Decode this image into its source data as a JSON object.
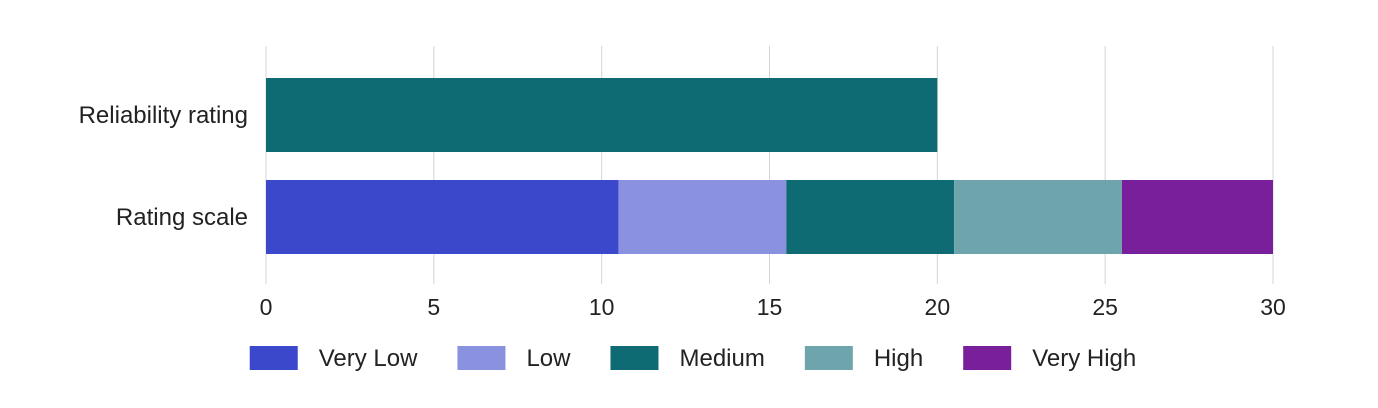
{
  "chart_data": {
    "type": "bar",
    "orientation": "horizontal",
    "stacked": true,
    "categories": [
      "Reliability rating",
      "Rating scale"
    ],
    "series": [
      {
        "name": "Very Low",
        "color": "#3b48cc",
        "values": [
          0,
          10.5
        ]
      },
      {
        "name": "Low",
        "color": "#8a91df",
        "values": [
          0,
          5
        ]
      },
      {
        "name": "Medium",
        "color": "#0f6b73",
        "values": [
          20,
          5
        ]
      },
      {
        "name": "High",
        "color": "#6ea5ad",
        "values": [
          0,
          5
        ]
      },
      {
        "name": "Very High",
        "color": "#7a1f9b",
        "values": [
          0,
          4.5
        ]
      }
    ],
    "xlim": [
      0,
      30
    ],
    "xticks": [
      0,
      5,
      10,
      15,
      20,
      25,
      30
    ],
    "grid": true,
    "legend": "bottom",
    "title": "",
    "xlabel": "",
    "ylabel": ""
  }
}
